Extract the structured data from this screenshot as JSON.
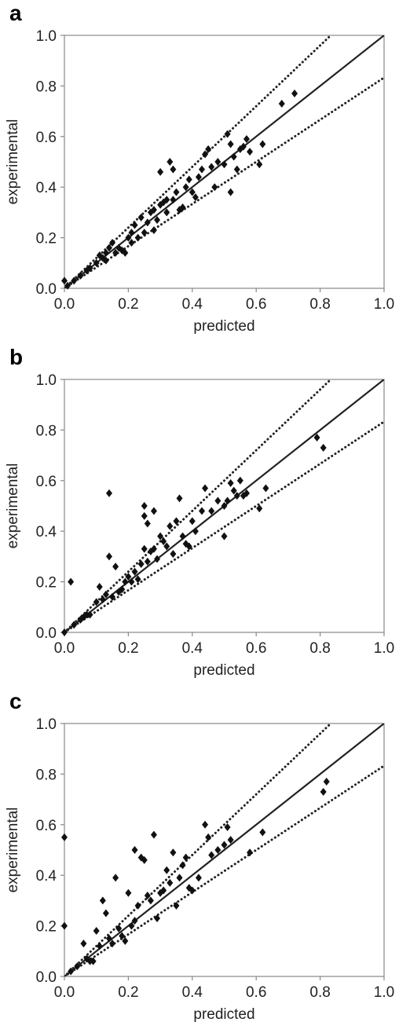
{
  "chart_data": [
    {
      "panel_label": "a",
      "type": "scatter",
      "xlabel": "predicted",
      "ylabel": "experimental",
      "xlim": [
        0,
        1
      ],
      "ylim": [
        0,
        1
      ],
      "xticks": [
        "0.0",
        "0.2",
        "0.4",
        "0.6",
        "0.8",
        "1.0"
      ],
      "yticks": [
        "0.0",
        "0.2",
        "0.4",
        "0.6",
        "0.8",
        "1.0"
      ],
      "reference_lines": [
        {
          "style": "solid",
          "slope": 1.0
        },
        {
          "style": "dotted",
          "slope": 1.2
        },
        {
          "style": "dotted",
          "slope": 0.833
        }
      ],
      "points": [
        [
          0.0,
          0.03
        ],
        [
          0.01,
          0.01
        ],
        [
          0.03,
          0.03
        ],
        [
          0.05,
          0.05
        ],
        [
          0.07,
          0.07
        ],
        [
          0.08,
          0.08
        ],
        [
          0.1,
          0.1
        ],
        [
          0.11,
          0.13
        ],
        [
          0.12,
          0.12
        ],
        [
          0.13,
          0.14
        ],
        [
          0.13,
          0.11
        ],
        [
          0.14,
          0.16
        ],
        [
          0.15,
          0.18
        ],
        [
          0.16,
          0.14
        ],
        [
          0.17,
          0.16
        ],
        [
          0.18,
          0.15
        ],
        [
          0.19,
          0.14
        ],
        [
          0.2,
          0.2
        ],
        [
          0.21,
          0.18
        ],
        [
          0.21,
          0.22
        ],
        [
          0.22,
          0.25
        ],
        [
          0.23,
          0.2
        ],
        [
          0.24,
          0.28
        ],
        [
          0.25,
          0.22
        ],
        [
          0.26,
          0.26
        ],
        [
          0.27,
          0.3
        ],
        [
          0.28,
          0.31
        ],
        [
          0.28,
          0.23
        ],
        [
          0.29,
          0.27
        ],
        [
          0.3,
          0.33
        ],
        [
          0.31,
          0.34
        ],
        [
          0.32,
          0.3
        ],
        [
          0.32,
          0.35
        ],
        [
          0.33,
          0.5
        ],
        [
          0.34,
          0.47
        ],
        [
          0.34,
          0.35
        ],
        [
          0.35,
          0.38
        ],
        [
          0.36,
          0.31
        ],
        [
          0.37,
          0.32
        ],
        [
          0.38,
          0.4
        ],
        [
          0.39,
          0.43
        ],
        [
          0.4,
          0.38
        ],
        [
          0.41,
          0.36
        ],
        [
          0.42,
          0.44
        ],
        [
          0.43,
          0.47
        ],
        [
          0.44,
          0.53
        ],
        [
          0.45,
          0.55
        ],
        [
          0.46,
          0.48
        ],
        [
          0.47,
          0.4
        ],
        [
          0.48,
          0.5
        ],
        [
          0.3,
          0.46
        ],
        [
          0.5,
          0.49
        ],
        [
          0.51,
          0.61
        ],
        [
          0.52,
          0.38
        ],
        [
          0.52,
          0.57
        ],
        [
          0.53,
          0.52
        ],
        [
          0.54,
          0.47
        ],
        [
          0.55,
          0.55
        ],
        [
          0.56,
          0.56
        ],
        [
          0.57,
          0.59
        ],
        [
          0.58,
          0.54
        ],
        [
          0.61,
          0.49
        ],
        [
          0.62,
          0.57
        ],
        [
          0.68,
          0.73
        ],
        [
          0.72,
          0.77
        ]
      ]
    },
    {
      "panel_label": "b",
      "type": "scatter",
      "xlabel": "predicted",
      "ylabel": "experimental",
      "xlim": [
        0,
        1
      ],
      "ylim": [
        0,
        1
      ],
      "xticks": [
        "0.0",
        "0.2",
        "0.4",
        "0.6",
        "0.8",
        "1.0"
      ],
      "yticks": [
        "0.0",
        "0.2",
        "0.4",
        "0.6",
        "0.8",
        "1.0"
      ],
      "reference_lines": [
        {
          "style": "solid",
          "slope": 1.0
        },
        {
          "style": "dotted",
          "slope": 1.2
        },
        {
          "style": "dotted",
          "slope": 0.833
        }
      ],
      "points": [
        [
          0.0,
          0.0
        ],
        [
          0.02,
          0.2
        ],
        [
          0.03,
          0.03
        ],
        [
          0.05,
          0.05
        ],
        [
          0.06,
          0.06
        ],
        [
          0.07,
          0.07
        ],
        [
          0.08,
          0.07
        ],
        [
          0.1,
          0.12
        ],
        [
          0.11,
          0.18
        ],
        [
          0.12,
          0.13
        ],
        [
          0.13,
          0.15
        ],
        [
          0.14,
          0.55
        ],
        [
          0.14,
          0.3
        ],
        [
          0.15,
          0.14
        ],
        [
          0.16,
          0.26
        ],
        [
          0.17,
          0.16
        ],
        [
          0.18,
          0.17
        ],
        [
          0.19,
          0.2
        ],
        [
          0.2,
          0.22
        ],
        [
          0.21,
          0.2
        ],
        [
          0.22,
          0.24
        ],
        [
          0.23,
          0.21
        ],
        [
          0.24,
          0.27
        ],
        [
          0.25,
          0.33
        ],
        [
          0.25,
          0.5
        ],
        [
          0.25,
          0.46
        ],
        [
          0.26,
          0.28
        ],
        [
          0.26,
          0.43
        ],
        [
          0.27,
          0.32
        ],
        [
          0.28,
          0.48
        ],
        [
          0.28,
          0.33
        ],
        [
          0.29,
          0.29
        ],
        [
          0.3,
          0.38
        ],
        [
          0.31,
          0.36
        ],
        [
          0.32,
          0.34
        ],
        [
          0.33,
          0.42
        ],
        [
          0.34,
          0.31
        ],
        [
          0.35,
          0.44
        ],
        [
          0.36,
          0.53
        ],
        [
          0.37,
          0.38
        ],
        [
          0.38,
          0.35
        ],
        [
          0.39,
          0.34
        ],
        [
          0.4,
          0.44
        ],
        [
          0.41,
          0.4
        ],
        [
          0.43,
          0.48
        ],
        [
          0.44,
          0.57
        ],
        [
          0.46,
          0.48
        ],
        [
          0.48,
          0.52
        ],
        [
          0.5,
          0.5
        ],
        [
          0.51,
          0.52
        ],
        [
          0.52,
          0.59
        ],
        [
          0.53,
          0.56
        ],
        [
          0.54,
          0.54
        ],
        [
          0.55,
          0.6
        ],
        [
          0.56,
          0.54
        ],
        [
          0.57,
          0.55
        ],
        [
          0.5,
          0.38
        ],
        [
          0.61,
          0.49
        ],
        [
          0.63,
          0.57
        ],
        [
          0.79,
          0.77
        ],
        [
          0.81,
          0.73
        ]
      ]
    },
    {
      "panel_label": "c",
      "type": "scatter",
      "xlabel": "predicted",
      "ylabel": "experimental",
      "xlim": [
        0,
        1
      ],
      "ylim": [
        0,
        1
      ],
      "xticks": [
        "0.0",
        "0.2",
        "0.4",
        "0.6",
        "0.8",
        "1.0"
      ],
      "yticks": [
        "0.0",
        "0.2",
        "0.4",
        "0.6",
        "0.8",
        "1.0"
      ],
      "reference_lines": [
        {
          "style": "solid",
          "slope": 1.0
        },
        {
          "style": "dotted",
          "slope": 1.2
        },
        {
          "style": "dotted",
          "slope": 0.833
        }
      ],
      "points": [
        [
          0.0,
          0.55
        ],
        [
          0.0,
          0.2
        ],
        [
          0.02,
          0.02
        ],
        [
          0.04,
          0.04
        ],
        [
          0.06,
          0.13
        ],
        [
          0.07,
          0.07
        ],
        [
          0.08,
          0.06
        ],
        [
          0.09,
          0.06
        ],
        [
          0.1,
          0.18
        ],
        [
          0.11,
          0.12
        ],
        [
          0.12,
          0.3
        ],
        [
          0.13,
          0.25
        ],
        [
          0.14,
          0.15
        ],
        [
          0.15,
          0.13
        ],
        [
          0.16,
          0.39
        ],
        [
          0.17,
          0.19
        ],
        [
          0.18,
          0.16
        ],
        [
          0.19,
          0.14
        ],
        [
          0.2,
          0.33
        ],
        [
          0.21,
          0.2
        ],
        [
          0.22,
          0.5
        ],
        [
          0.22,
          0.22
        ],
        [
          0.23,
          0.28
        ],
        [
          0.24,
          0.47
        ],
        [
          0.25,
          0.46
        ],
        [
          0.26,
          0.32
        ],
        [
          0.27,
          0.3
        ],
        [
          0.28,
          0.56
        ],
        [
          0.29,
          0.23
        ],
        [
          0.3,
          0.33
        ],
        [
          0.31,
          0.34
        ],
        [
          0.32,
          0.42
        ],
        [
          0.33,
          0.37
        ],
        [
          0.34,
          0.49
        ],
        [
          0.35,
          0.28
        ],
        [
          0.36,
          0.39
        ],
        [
          0.37,
          0.44
        ],
        [
          0.38,
          0.47
        ],
        [
          0.39,
          0.35
        ],
        [
          0.4,
          0.34
        ],
        [
          0.42,
          0.39
        ],
        [
          0.44,
          0.6
        ],
        [
          0.45,
          0.55
        ],
        [
          0.46,
          0.48
        ],
        [
          0.48,
          0.5
        ],
        [
          0.5,
          0.52
        ],
        [
          0.51,
          0.59
        ],
        [
          0.52,
          0.54
        ],
        [
          0.58,
          0.49
        ],
        [
          0.62,
          0.57
        ],
        [
          0.81,
          0.73
        ],
        [
          0.82,
          0.77
        ]
      ]
    }
  ]
}
